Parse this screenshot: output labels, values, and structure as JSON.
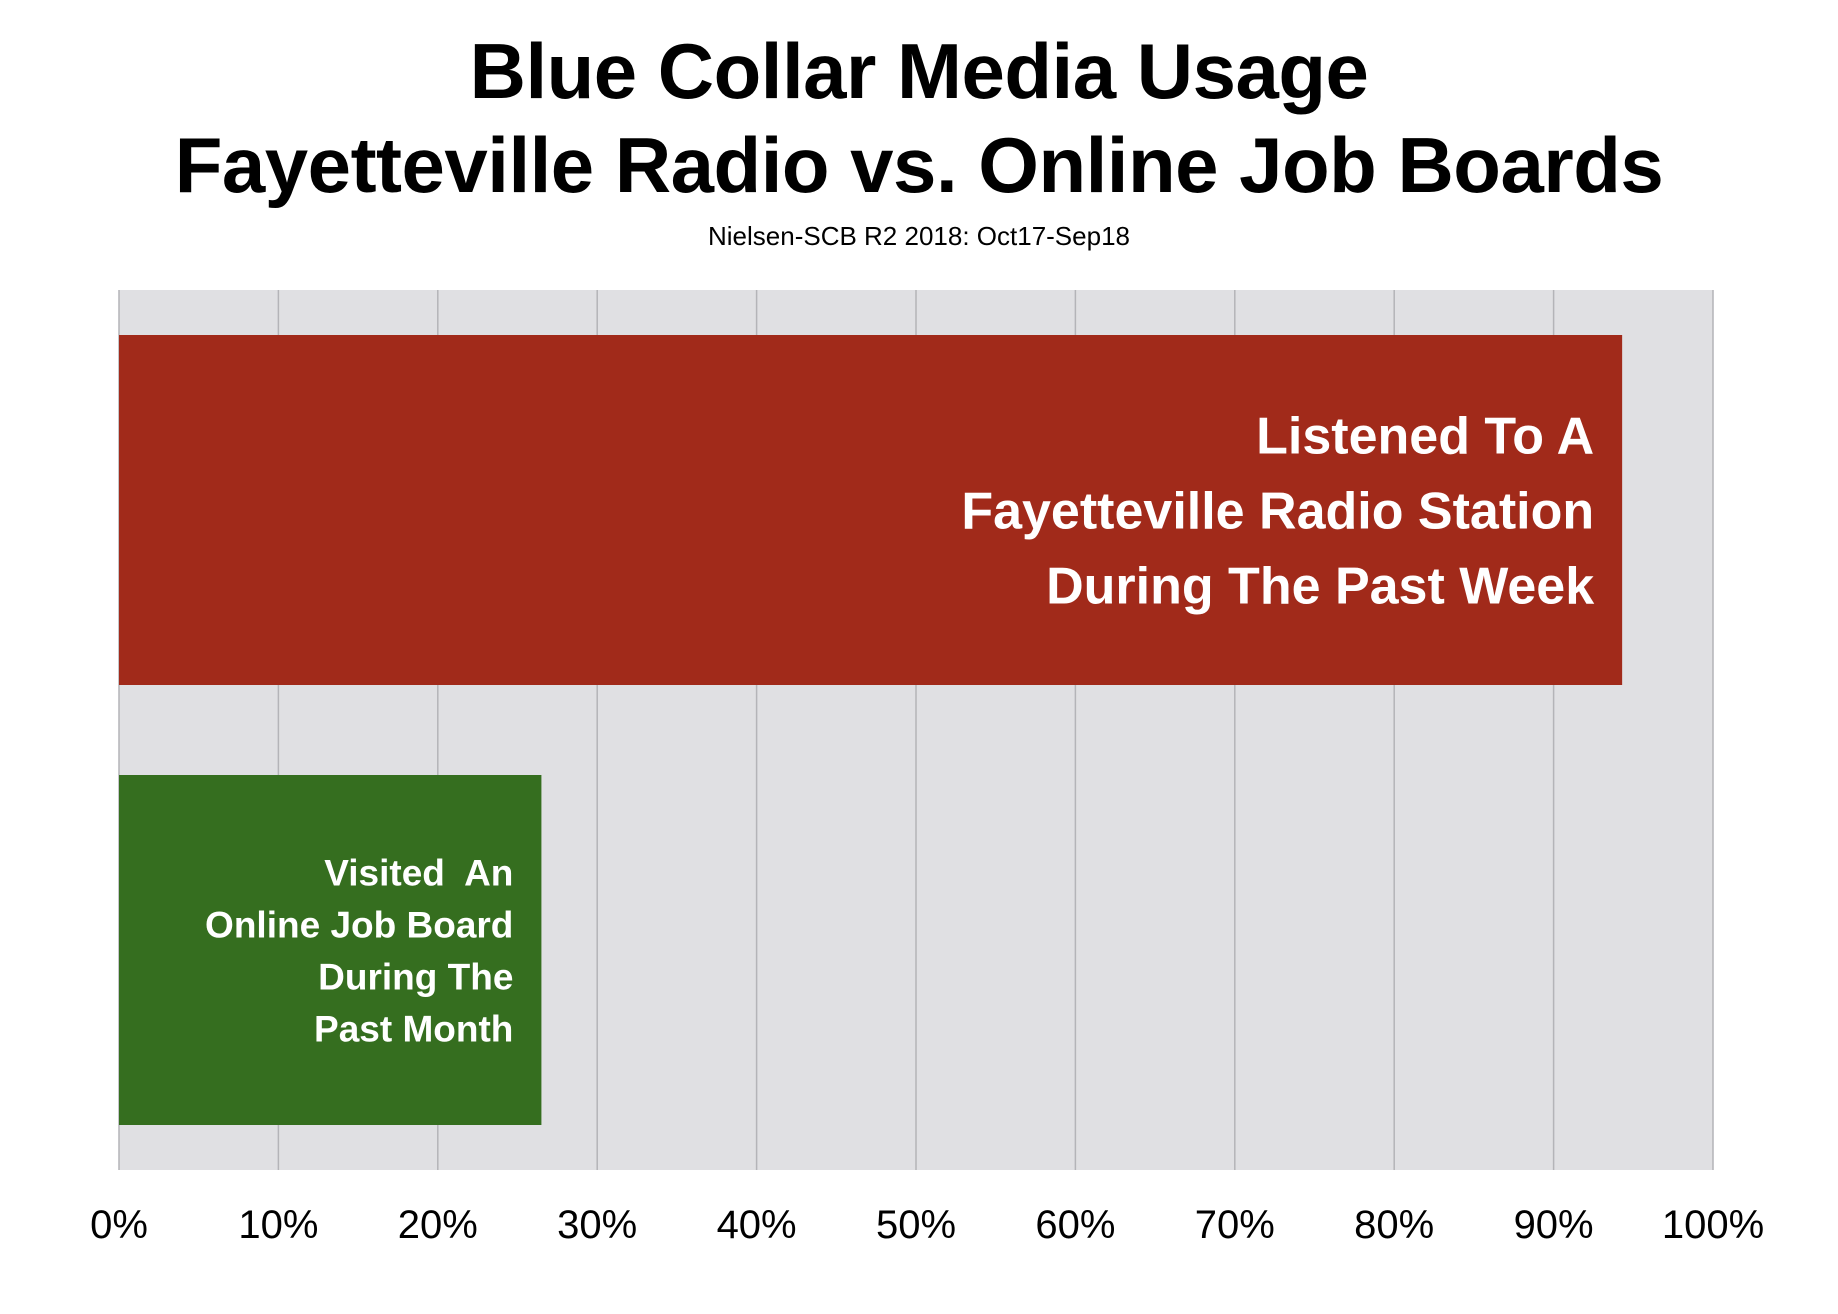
{
  "chart_data": {
    "type": "bar",
    "orientation": "horizontal",
    "title": [
      "Blue Collar Media Usage",
      "Fayetteville Radio vs. Online Job Boards"
    ],
    "subtitle": "Nielsen-SCB R2 2018: Oct17-Sep18",
    "xlabel": "",
    "ylabel": "",
    "xlim": [
      0,
      100
    ],
    "unit": "%",
    "grid": true,
    "x_ticks": [
      "0%",
      "10%",
      "20%",
      "30%",
      "40%",
      "50%",
      "60%",
      "70%",
      "80%",
      "90%",
      "100%"
    ],
    "bars": [
      {
        "label_lines": [
          "Listened To A",
          "Fayetteville Radio Station",
          "During The Past Week"
        ],
        "value": 94.3,
        "color": "#a12a1a"
      },
      {
        "label_lines": [
          "Visited  An",
          "Online Job Board",
          "During The",
          "Past Month"
        ],
        "value": 26.5,
        "color": "#356e1f"
      }
    ],
    "plot_background": "#e0e0e3",
    "grid_color": "#b4b4b8"
  }
}
